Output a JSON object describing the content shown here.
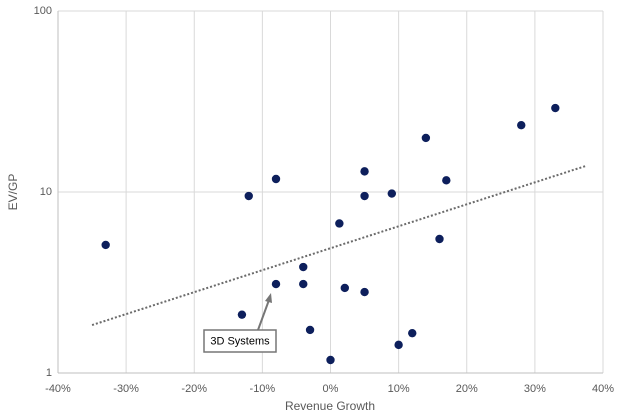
{
  "chart_data": {
    "type": "scatter",
    "x_label": "Revenue Growth",
    "y_label": "EV/GP",
    "x": [
      -33,
      -12,
      -8,
      -13,
      -8,
      -4,
      -4,
      -3,
      0,
      1.3,
      2.1,
      5,
      5,
      5,
      9,
      10,
      12,
      14,
      16,
      17,
      28,
      33
    ],
    "values": [
      5.1,
      9.5,
      11.8,
      2.1,
      3.1,
      3.85,
      3.1,
      1.73,
      1.18,
      6.7,
      2.95,
      13,
      9.5,
      2.8,
      9.8,
      1.43,
      1.66,
      19.9,
      5.5,
      11.6,
      23.4,
      29.1
    ],
    "color": "#0d1f5c",
    "trendline": {
      "x": [
        -35,
        37.4
      ],
      "values": [
        1.84,
        13.9
      ],
      "color": "#6b6b6b"
    },
    "annotation": "3D Systems",
    "xlim": [
      -40,
      40
    ],
    "xticks": [
      {
        "value": -40,
        "label": "-40%"
      },
      {
        "value": -30,
        "label": "-30%"
      },
      {
        "value": -20,
        "label": "-20%"
      },
      {
        "value": -10,
        "label": "-10%"
      },
      {
        "value": 0,
        "label": "0%"
      },
      {
        "value": 10,
        "label": "10%"
      },
      {
        "value": 20,
        "label": "20%"
      },
      {
        "value": 30,
        "label": "30%"
      },
      {
        "value": 40,
        "label": "40%"
      }
    ],
    "ylim": [
      1,
      100
    ],
    "yticks": [
      1,
      10,
      100
    ],
    "yscale": "log",
    "grid": true
  }
}
